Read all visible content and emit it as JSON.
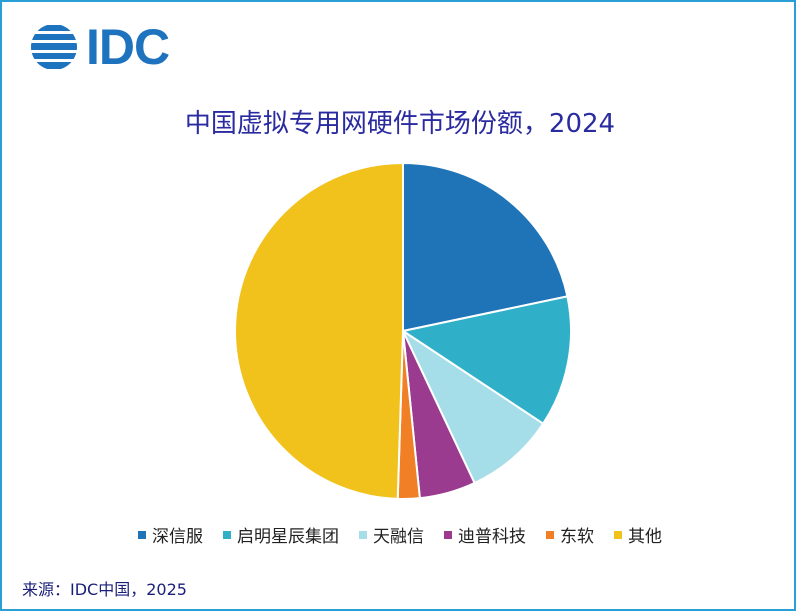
{
  "logo": {
    "text": "IDC"
  },
  "source": "来源：IDC中国，2025",
  "chart_data": {
    "type": "pie",
    "title": "中国虚拟专用网硬件市场份额，2024",
    "legend_position": "bottom",
    "slices": [
      {
        "label": "深信服",
        "value": 21.7,
        "color": "#1f74b8"
      },
      {
        "label": "启明星辰集团",
        "value": 12.6,
        "color": "#2fb0c8"
      },
      {
        "label": "天融信",
        "value": 8.7,
        "color": "#a5dde8"
      },
      {
        "label": "迪普科技",
        "value": 5.4,
        "color": "#9b3b8f"
      },
      {
        "label": "东软",
        "value": 2.1,
        "color": "#f07f26"
      },
      {
        "label": "其他",
        "value": 49.5,
        "color": "#f1c21b"
      }
    ]
  }
}
